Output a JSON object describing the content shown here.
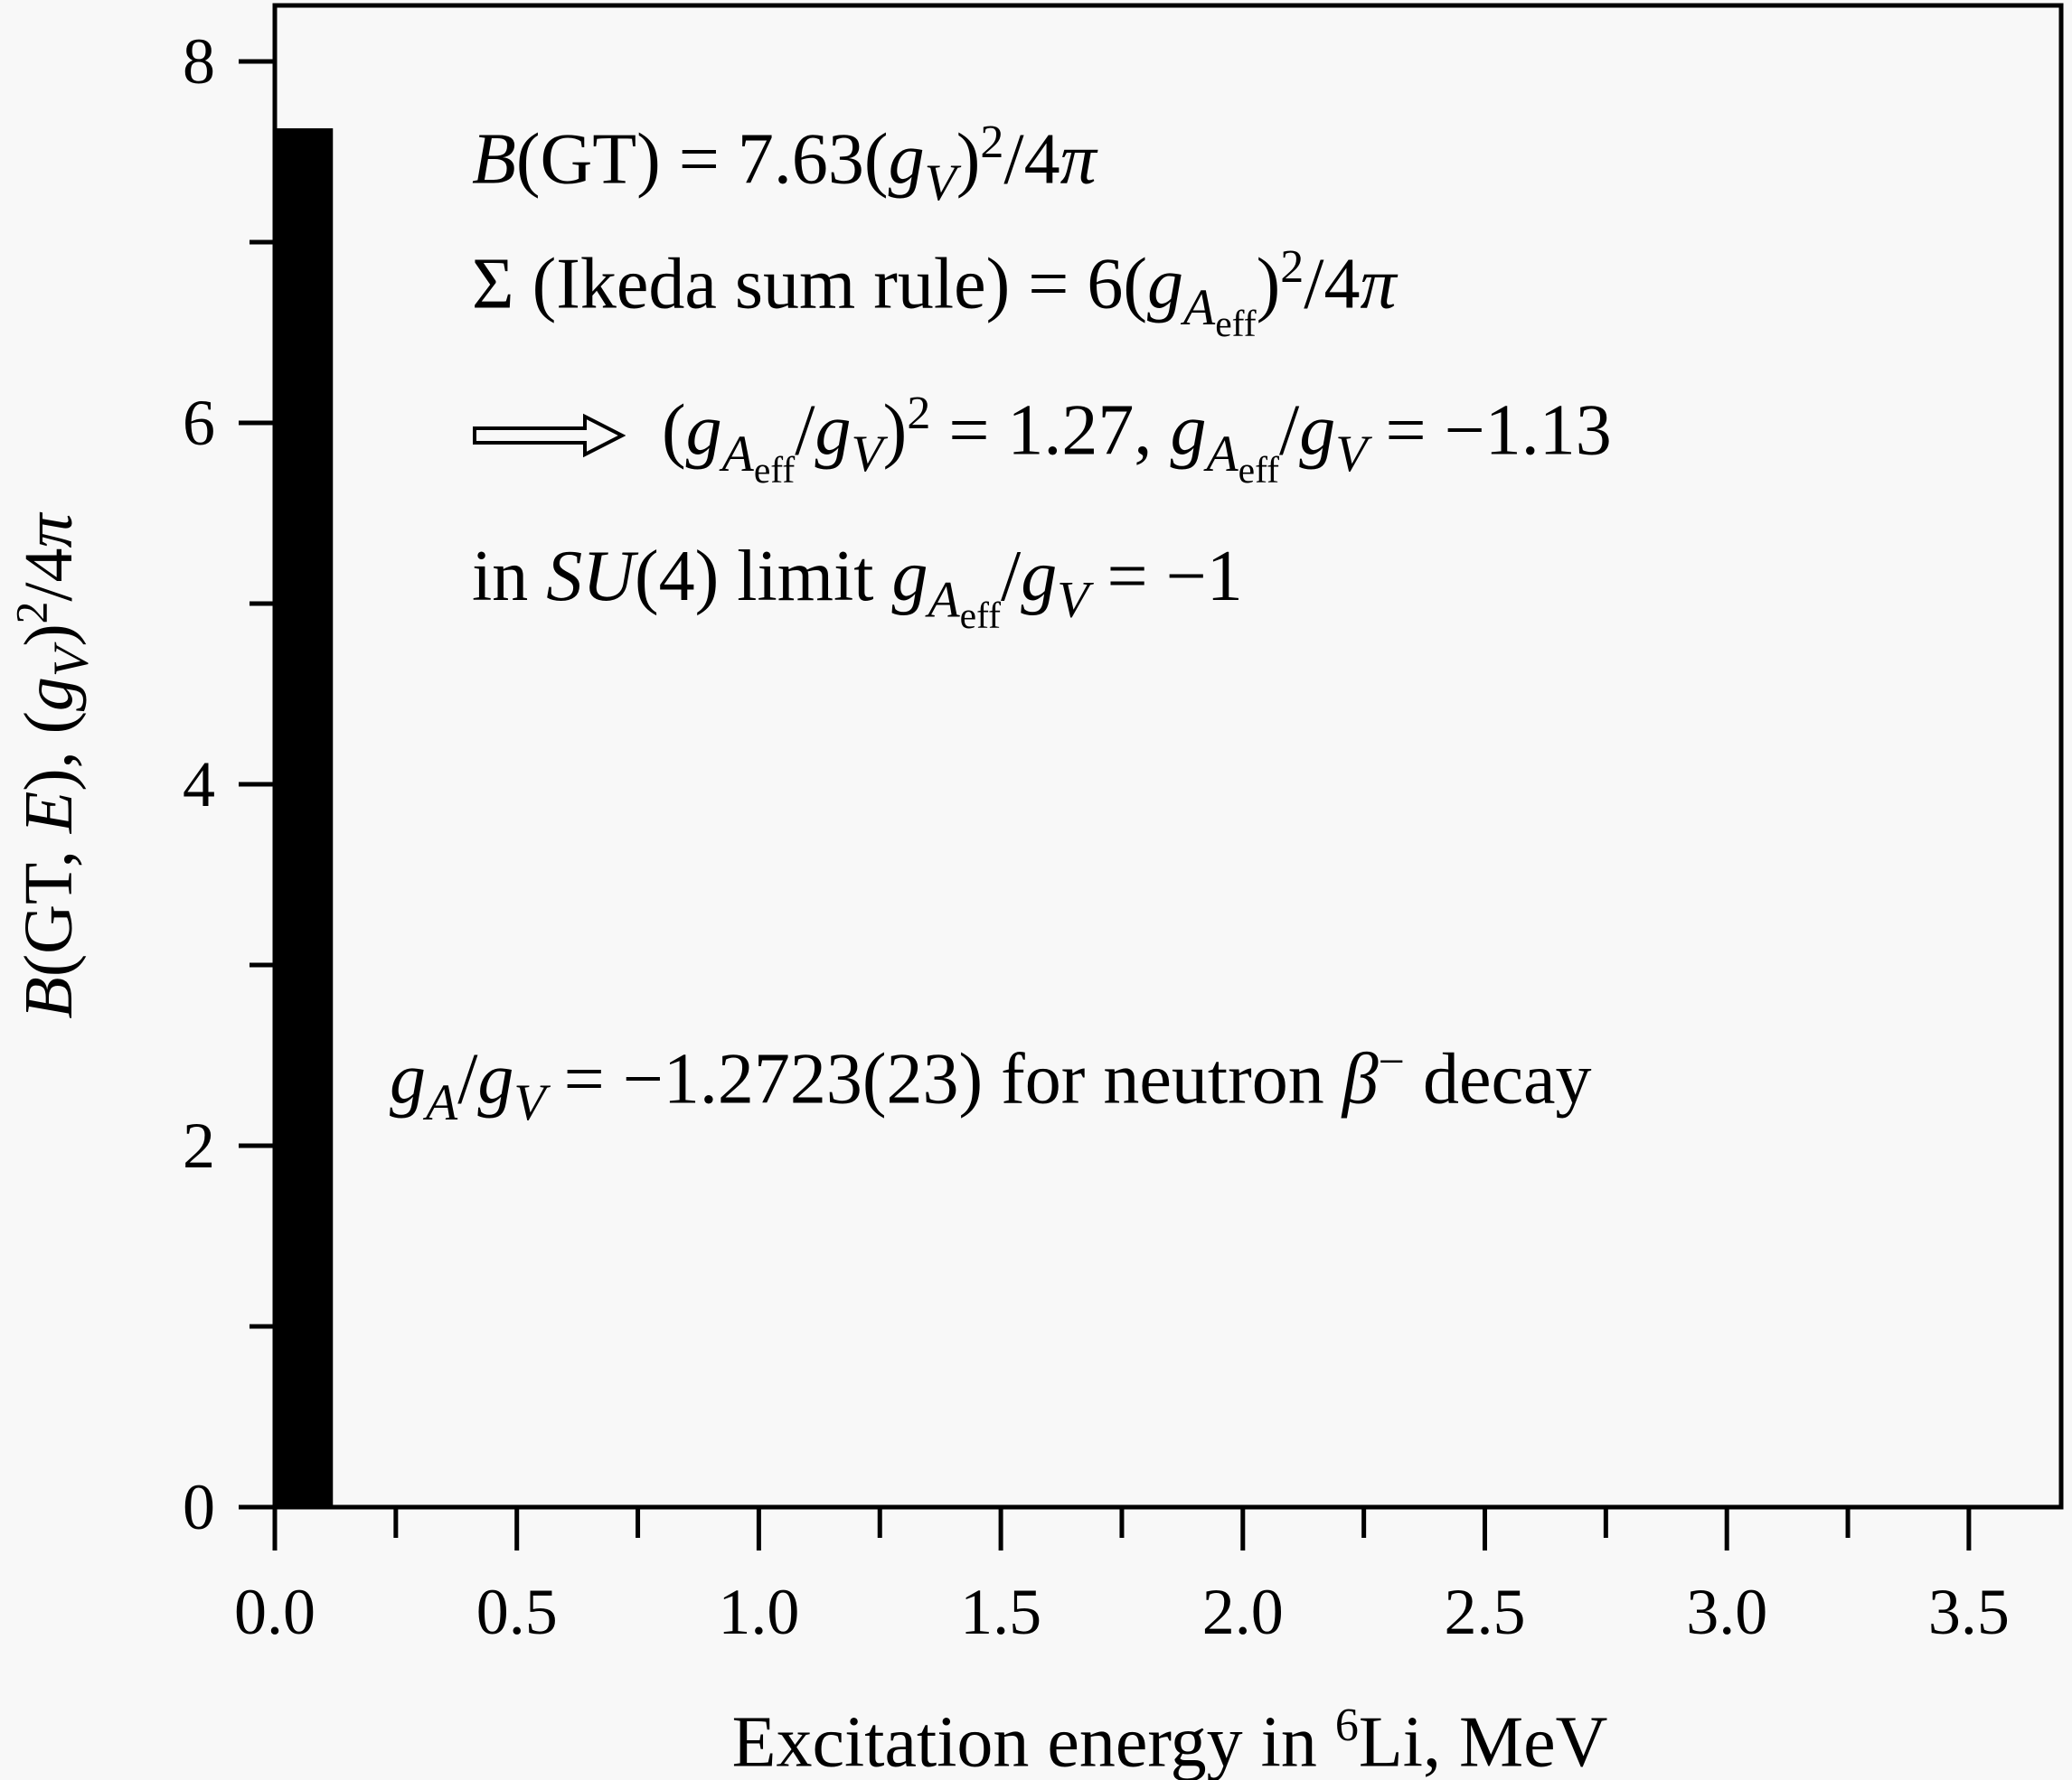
{
  "chart_data": {
    "type": "bar",
    "x": [
      0.0
    ],
    "values": [
      7.63
    ],
    "bar_width": 0.12,
    "xlim": [
      0.0,
      3.69
    ],
    "ylim": [
      0,
      8.31
    ],
    "x_ticks": [
      "0.0",
      "0.5",
      "1.0",
      "1.5",
      "2.0",
      "2.5",
      "3.0",
      "3.5"
    ],
    "x_tick_values": [
      0,
      0.5,
      1.0,
      1.5,
      2.0,
      2.5,
      3.0,
      3.5
    ],
    "x_minor_step": 0.25,
    "y_ticks": [
      "0",
      "2",
      "4",
      "6",
      "8"
    ],
    "y_tick_values": [
      0,
      2,
      4,
      6,
      8
    ],
    "y_minor_step": 1,
    "grid": false,
    "bar_color": "#000000",
    "background": "#f8f8f8",
    "xlabel": [
      {
        "t": "Excitation energy in ",
        "s": "n"
      },
      {
        "t": "6",
        "s": "sup"
      },
      {
        "t": "Li, MeV",
        "s": "n"
      }
    ],
    "ylabel": [
      {
        "t": "B",
        "s": "i"
      },
      {
        "t": "(GT, ",
        "s": "n"
      },
      {
        "t": "E",
        "s": "i"
      },
      {
        "t": "), (",
        "s": "n"
      },
      {
        "t": "g",
        "s": "i"
      },
      {
        "t": "V",
        "s": "sub"
      },
      {
        "t": ")",
        "s": "n"
      },
      {
        "t": "2",
        "s": "sup"
      },
      {
        "t": "/4",
        "s": "n"
      },
      {
        "t": "π",
        "s": "i"
      }
    ],
    "annotations": [
      [
        {
          "t": "B",
          "s": "i"
        },
        {
          "t": "(GT) = 7.63(",
          "s": "n"
        },
        {
          "t": "g",
          "s": "i"
        },
        {
          "t": "V",
          "s": "sub"
        },
        {
          "t": ")",
          "s": "n"
        },
        {
          "t": "2",
          "s": "sup"
        },
        {
          "t": "/4",
          "s": "n"
        },
        {
          "t": "π",
          "s": "i"
        }
      ],
      [
        {
          "t": "Σ (Ikeda sum rule) = 6(",
          "s": "n"
        },
        {
          "t": "g",
          "s": "i"
        },
        {
          "t": "A",
          "s": "sub"
        },
        {
          "t": "eff",
          "s": "subsub"
        },
        {
          "t": ")",
          "s": "n"
        },
        {
          "t": "2",
          "s": "sup"
        },
        {
          "t": "/4",
          "s": "n"
        },
        {
          "t": "π",
          "s": "i"
        }
      ],
      [
        {
          "t": "(",
          "s": "n"
        },
        {
          "t": "g",
          "s": "i"
        },
        {
          "t": "A",
          "s": "sub"
        },
        {
          "t": "eff",
          "s": "subsub"
        },
        {
          "t": "/",
          "s": "n"
        },
        {
          "t": "g",
          "s": "i"
        },
        {
          "t": "V",
          "s": "sub"
        },
        {
          "t": ")",
          "s": "n"
        },
        {
          "t": "2",
          "s": "sup"
        },
        {
          "t": " = 1.27, ",
          "s": "n"
        },
        {
          "t": "g",
          "s": "i"
        },
        {
          "t": "A",
          "s": "sub"
        },
        {
          "t": "eff",
          "s": "subsub"
        },
        {
          "t": "/",
          "s": "n"
        },
        {
          "t": "g",
          "s": "i"
        },
        {
          "t": "V",
          "s": "sub"
        },
        {
          "t": " = −1.13",
          "s": "n"
        }
      ],
      [
        {
          "t": "in ",
          "s": "n"
        },
        {
          "t": "SU",
          "s": "i"
        },
        {
          "t": "(4) limit ",
          "s": "n"
        },
        {
          "t": "g",
          "s": "i"
        },
        {
          "t": "A",
          "s": "sub"
        },
        {
          "t": "eff",
          "s": "subsub"
        },
        {
          "t": "/",
          "s": "n"
        },
        {
          "t": "g",
          "s": "i"
        },
        {
          "t": "V",
          "s": "sub"
        },
        {
          "t": " = −1",
          "s": "n"
        }
      ],
      [
        {
          "t": "g",
          "s": "i"
        },
        {
          "t": "A",
          "s": "sub"
        },
        {
          "t": "/",
          "s": "n"
        },
        {
          "t": "g",
          "s": "i"
        },
        {
          "t": "V",
          "s": "sub"
        },
        {
          "t": " = −1.2723(23) for neutron ",
          "s": "n"
        },
        {
          "t": "β",
          "s": "i"
        },
        {
          "t": "−",
          "s": "sup"
        },
        {
          "t": " decay",
          "s": "n"
        }
      ]
    ],
    "annotation_icons": [
      "",
      "",
      "double-right-arrow-icon",
      "",
      ""
    ]
  }
}
